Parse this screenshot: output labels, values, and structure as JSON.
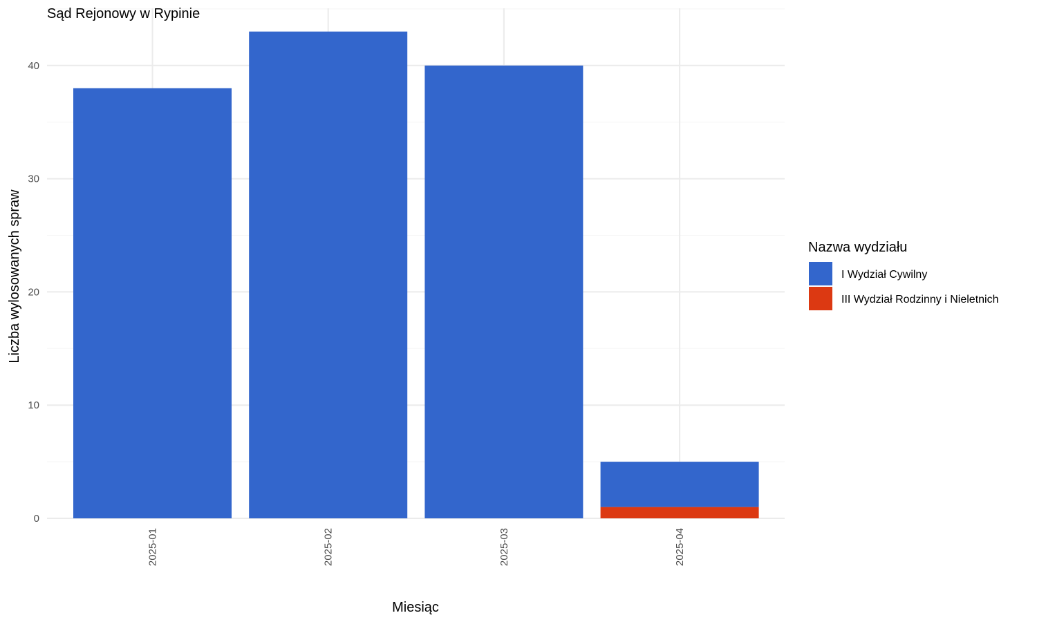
{
  "chart_data": {
    "type": "bar",
    "stacked": true,
    "title": "Sąd Rejonowy w Rypinie",
    "xlabel": "Miesiąc",
    "ylabel": "Liczba wylosowanych spraw",
    "categories": [
      "2025-01",
      "2025-02",
      "2025-03",
      "2025-04"
    ],
    "series": [
      {
        "name": "I Wydział Cywilny",
        "color": "#3366cc",
        "values": [
          38,
          43,
          40,
          4
        ]
      },
      {
        "name": "III Wydział Rodzinny i Nieletnich",
        "color": "#dc3912",
        "values": [
          0,
          0,
          0,
          1
        ]
      }
    ],
    "stack_order": [
      "III Wydział Rodzinny i Nieletnich",
      "I Wydział Cywilny"
    ],
    "ylim": [
      0,
      45
    ],
    "yticks": [
      0,
      10,
      20,
      30,
      40
    ],
    "legend": {
      "title": "Nazwa wydziału",
      "position": "right"
    },
    "grid": true,
    "x_tick_label_rotation": "vertical"
  }
}
